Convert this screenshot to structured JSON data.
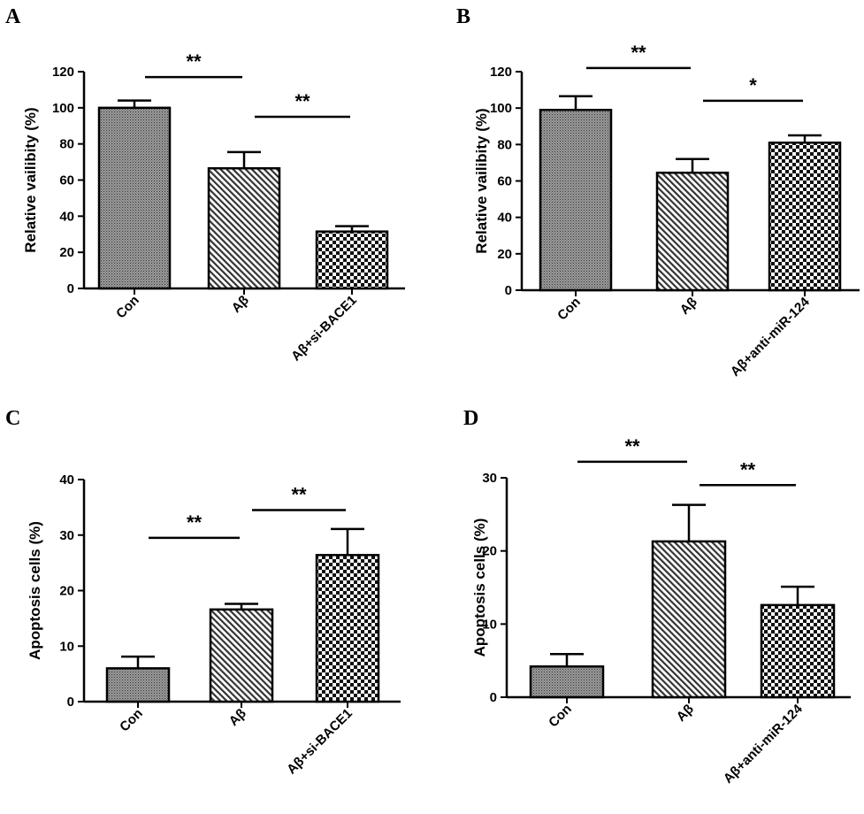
{
  "colors": {
    "ink": "#000000",
    "background": "#ffffff",
    "bar_fill_dark": "#555555"
  },
  "chart_data": [
    {
      "panel": "A",
      "type": "bar",
      "categories": [
        "Con",
        "Aβ",
        "Aβ+si-BACE1"
      ],
      "values": [
        100,
        66.5,
        31.5
      ],
      "errors": [
        4,
        9,
        3
      ],
      "patterns": [
        "stipple",
        "diagonal",
        "checker"
      ],
      "ylabel": "Relative vailibity (%)",
      "ylim": [
        0,
        120
      ],
      "yticks": [
        0,
        20,
        40,
        60,
        80,
        100,
        120
      ],
      "significance": [
        {
          "from": 0,
          "to": 1,
          "label": "**",
          "y": 117
        },
        {
          "from": 1,
          "to": 2,
          "label": "**",
          "y": 95
        }
      ]
    },
    {
      "panel": "B",
      "type": "bar",
      "categories": [
        "Con",
        "Aβ",
        "Aβ+anti-miR-124"
      ],
      "values": [
        99,
        64.5,
        81
      ],
      "errors": [
        7.5,
        7.5,
        4
      ],
      "patterns": [
        "stipple",
        "diagonal",
        "checker"
      ],
      "ylabel": "Relative vailibity (%)",
      "ylim": [
        0,
        120
      ],
      "yticks": [
        0,
        20,
        40,
        60,
        80,
        100,
        120
      ],
      "significance": [
        {
          "from": 0,
          "to": 1,
          "label": "**",
          "y": 122
        },
        {
          "from": 1,
          "to": 2,
          "label": "*",
          "y": 104
        }
      ]
    },
    {
      "panel": "C",
      "type": "bar",
      "categories": [
        "Con",
        "Aβ",
        "Aβ+si-BACE1"
      ],
      "values": [
        6,
        16.6,
        26.4
      ],
      "errors": [
        2.1,
        1,
        4.7
      ],
      "patterns": [
        "stipple",
        "diagonal",
        "checker"
      ],
      "ylabel": "Apoptosis cells (%)",
      "ylim": [
        0,
        40
      ],
      "yticks": [
        0,
        10,
        20,
        30,
        40
      ],
      "significance": [
        {
          "from": 0,
          "to": 1,
          "label": "**",
          "y": 29.5
        },
        {
          "from": 1,
          "to": 2,
          "label": "**",
          "y": 34.5
        }
      ]
    },
    {
      "panel": "D",
      "type": "bar",
      "categories": [
        "Con",
        "Aβ",
        "Aβ+anti-miR-124"
      ],
      "values": [
        4.2,
        21.3,
        12.6
      ],
      "errors": [
        1.7,
        5,
        2.5
      ],
      "patterns": [
        "stipple",
        "diagonal",
        "checker"
      ],
      "ylabel": "Apoptosis cells (%)",
      "ylim": [
        0,
        30
      ],
      "yticks": [
        0,
        10,
        20,
        30
      ],
      "significance": [
        {
          "from": 0,
          "to": 1,
          "label": "**",
          "y": 32.2
        },
        {
          "from": 1,
          "to": 2,
          "label": "**",
          "y": 29
        }
      ]
    }
  ]
}
